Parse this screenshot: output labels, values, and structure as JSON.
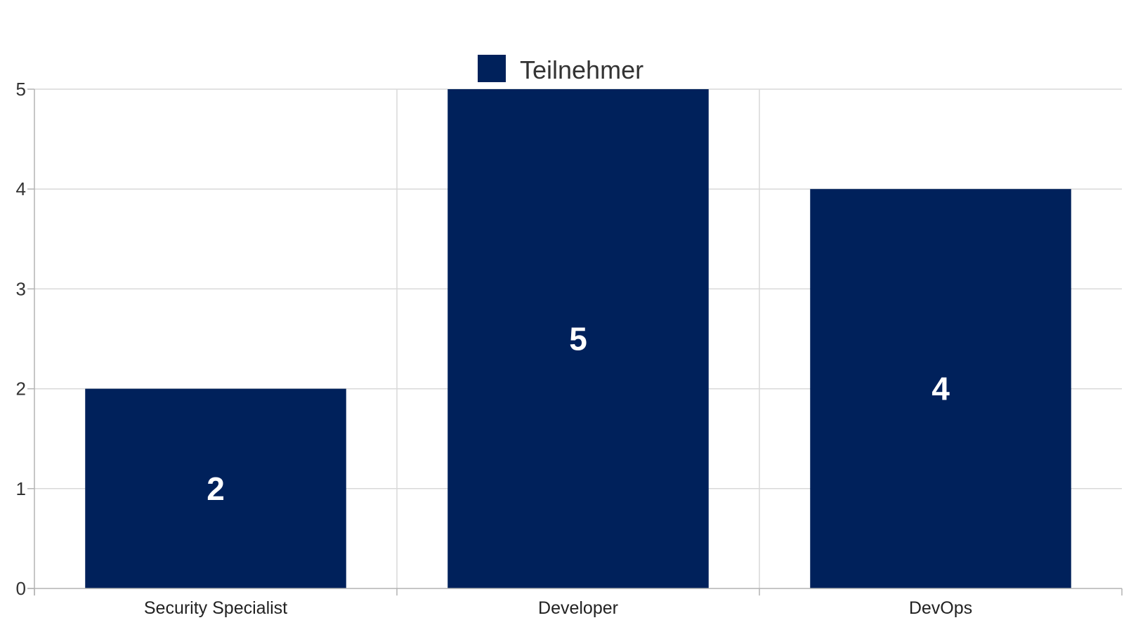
{
  "chart_data": {
    "type": "bar",
    "title": "",
    "xlabel": "",
    "ylabel": "",
    "categories": [
      "Security Specialist",
      "Developer",
      "DevOps"
    ],
    "series": [
      {
        "name": "Teilnehmer",
        "values": [
          2,
          5,
          4
        ],
        "color": "#00215b"
      }
    ],
    "ylim": [
      0,
      5
    ],
    "yticks": [
      "0",
      "1",
      "2",
      "3",
      "4",
      "5"
    ],
    "data_labels": [
      "2",
      "5",
      "4"
    ],
    "grid": true,
    "legend_position": "top-center"
  }
}
